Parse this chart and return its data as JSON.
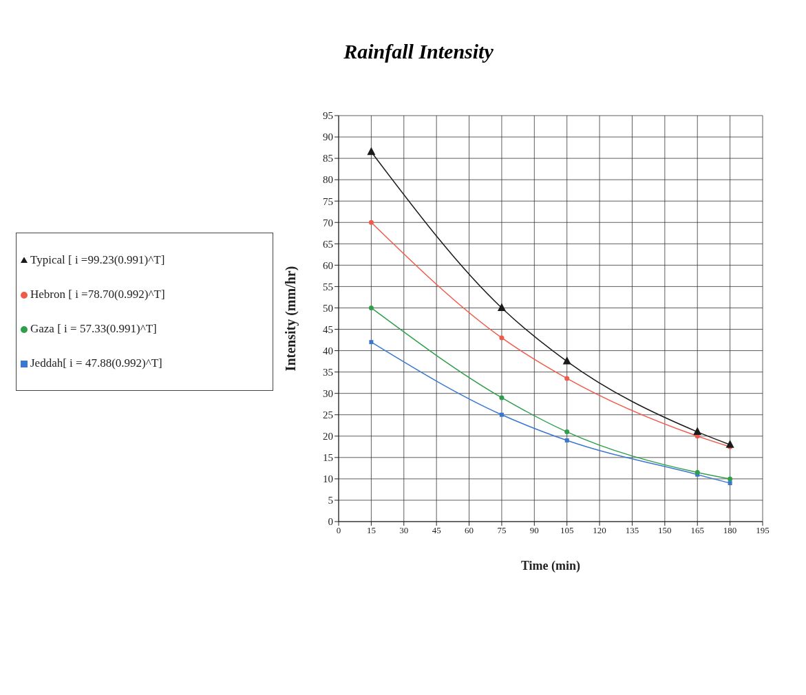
{
  "chart_data": {
    "type": "line",
    "title": "Rainfall Intensity",
    "xlabel": "Time (min)",
    "ylabel": "Intensity (mm/hr)",
    "x": [
      15,
      75,
      105,
      165,
      180
    ],
    "series": [
      {
        "name": "Typical [ i =99.23(0.991)^T]",
        "color": "#1a1a1a",
        "marker": "triangle",
        "values": [
          86.5,
          50,
          37.5,
          21,
          18
        ]
      },
      {
        "name": "Hebron [ i =78.70(0.992)^T]",
        "color": "#f05a4a",
        "marker": "circle",
        "values": [
          70,
          43,
          33.5,
          20,
          17.5
        ]
      },
      {
        "name": "Gaza [ i = 57.33(0.991)^T]",
        "color": "#2e9e4a",
        "marker": "circle",
        "values": [
          50,
          29,
          21,
          11.5,
          10
        ]
      },
      {
        "name": "Jeddah[ i = 47.88(0.992)^T]",
        "color": "#3a78d0",
        "marker": "square",
        "values": [
          42,
          25,
          19,
          11,
          9
        ]
      }
    ],
    "xlim": [
      0,
      195
    ],
    "xticks": [
      0,
      15,
      30,
      45,
      60,
      75,
      90,
      105,
      120,
      135,
      150,
      165,
      180,
      195
    ],
    "ylim": [
      0,
      95
    ],
    "yticks": [
      0,
      5,
      10,
      15,
      20,
      25,
      30,
      35,
      40,
      45,
      50,
      55,
      60,
      65,
      70,
      75,
      80,
      85,
      90,
      95
    ],
    "grid": true,
    "legend": "left",
    "line_style": "solid"
  }
}
